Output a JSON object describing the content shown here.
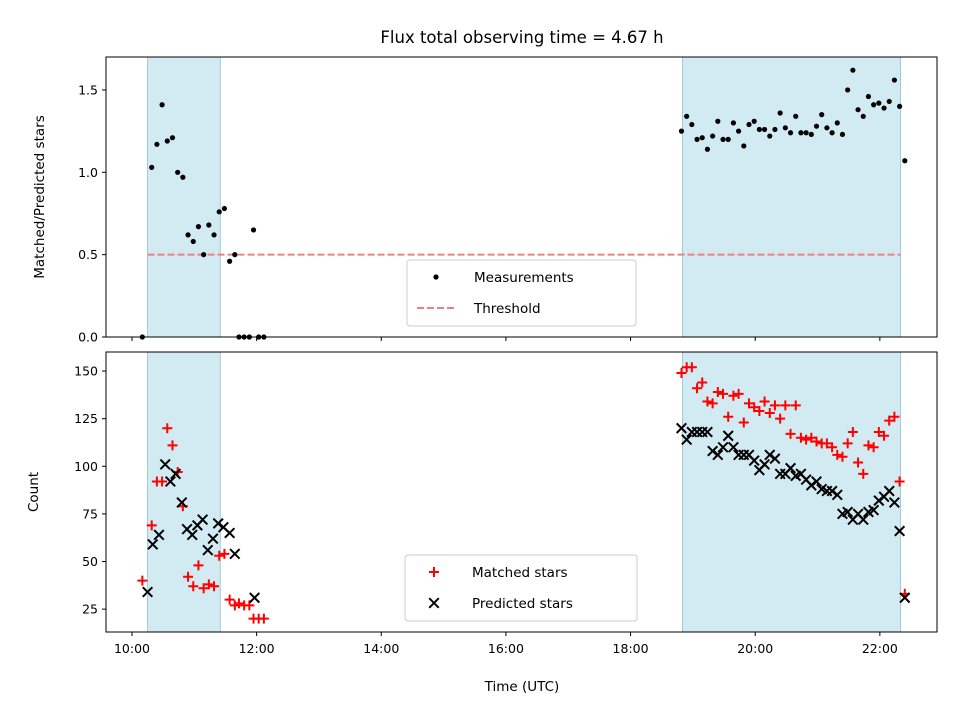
{
  "chart_data": {
    "title": "Flux total observing time = 4.67 h",
    "shaded_intervals": [
      [
        "10:15",
        "11:25"
      ],
      [
        "18:50",
        "22:20"
      ]
    ],
    "shade_color": "#add8e6",
    "xlim": [
      "09:35",
      "22:55"
    ],
    "x_ticks": [
      "10:00",
      "12:00",
      "14:00",
      "16:00",
      "18:00",
      "20:00",
      "22:00"
    ],
    "xlabel": "Time (UTC)",
    "panels": [
      {
        "type": "scatter",
        "ylabel": "Matched/Predicted stars",
        "ylim": [
          0,
          1.7
        ],
        "y_ticks": [
          "0.0",
          "0.5",
          "1.0",
          "1.5"
        ],
        "legend": {
          "position": "lower center",
          "entries": [
            "Measurements",
            "Threshold"
          ]
        },
        "series": [
          {
            "name": "Measurements",
            "marker": "dot",
            "color": "#000000",
            "points": [
              [
                "10:10",
                0.0
              ],
              [
                "10:19",
                1.03
              ],
              [
                "10:24",
                1.17
              ],
              [
                "10:29",
                1.41
              ],
              [
                "10:34",
                1.19
              ],
              [
                "10:39",
                1.21
              ],
              [
                "10:44",
                1.0
              ],
              [
                "10:49",
                0.97
              ],
              [
                "10:54",
                0.62
              ],
              [
                "10:59",
                0.58
              ],
              [
                "11:04",
                0.67
              ],
              [
                "11:09",
                0.5
              ],
              [
                "11:14",
                0.68
              ],
              [
                "11:19",
                0.62
              ],
              [
                "11:24",
                0.76
              ],
              [
                "11:29",
                0.78
              ],
              [
                "11:34",
                0.46
              ],
              [
                "11:39",
                0.5
              ],
              [
                "11:43",
                0.0
              ],
              [
                "11:48",
                0.0
              ],
              [
                "11:53",
                0.0
              ],
              [
                "11:57",
                0.65
              ],
              [
                "12:02",
                0.0
              ],
              [
                "12:07",
                0.0
              ],
              [
                "18:49",
                1.25
              ],
              [
                "18:54",
                1.34
              ],
              [
                "18:59",
                1.29
              ],
              [
                "19:04",
                1.2
              ],
              [
                "19:09",
                1.21
              ],
              [
                "19:14",
                1.14
              ],
              [
                "19:19",
                1.22
              ],
              [
                "19:24",
                1.31
              ],
              [
                "19:29",
                1.2
              ],
              [
                "19:34",
                1.2
              ],
              [
                "19:39",
                1.3
              ],
              [
                "19:44",
                1.25
              ],
              [
                "19:49",
                1.16
              ],
              [
                "19:54",
                1.29
              ],
              [
                "19:59",
                1.31
              ],
              [
                "20:04",
                1.26
              ],
              [
                "20:09",
                1.26
              ],
              [
                "20:14",
                1.22
              ],
              [
                "20:19",
                1.26
              ],
              [
                "20:24",
                1.36
              ],
              [
                "20:29",
                1.27
              ],
              [
                "20:34",
                1.24
              ],
              [
                "20:39",
                1.34
              ],
              [
                "20:44",
                1.24
              ],
              [
                "20:49",
                1.24
              ],
              [
                "20:54",
                1.23
              ],
              [
                "20:59",
                1.28
              ],
              [
                "21:04",
                1.35
              ],
              [
                "21:09",
                1.27
              ],
              [
                "21:14",
                1.24
              ],
              [
                "21:19",
                1.3
              ],
              [
                "21:24",
                1.23
              ],
              [
                "21:29",
                1.5
              ],
              [
                "21:34",
                1.62
              ],
              [
                "21:39",
                1.38
              ],
              [
                "21:44",
                1.34
              ],
              [
                "21:49",
                1.46
              ],
              [
                "21:54",
                1.41
              ],
              [
                "21:59",
                1.42
              ],
              [
                "22:04",
                1.39
              ],
              [
                "22:09",
                1.43
              ],
              [
                "22:14",
                1.56
              ],
              [
                "22:19",
                1.4
              ],
              [
                "22:24",
                1.07
              ]
            ]
          },
          {
            "name": "Threshold",
            "type": "line",
            "style": "dashed",
            "color": "#f08080",
            "x": [
              "10:15",
              "22:20"
            ],
            "y": [
              0.5,
              0.5
            ]
          }
        ]
      },
      {
        "type": "scatter",
        "ylabel": "Count",
        "ylim": [
          13,
          160
        ],
        "y_ticks": [
          "25",
          "50",
          "75",
          "100",
          "125",
          "150"
        ],
        "legend": {
          "position": "lower center",
          "entries": [
            "Matched stars",
            "Predicted stars"
          ]
        },
        "series": [
          {
            "name": "Matched stars",
            "marker": "plus",
            "color": "#ff0000",
            "points": [
              [
                "10:10",
                40
              ],
              [
                "10:19",
                69
              ],
              [
                "10:24",
                92
              ],
              [
                "10:29",
                92
              ],
              [
                "10:34",
                120
              ],
              [
                "10:39",
                111
              ],
              [
                "10:44",
                97
              ],
              [
                "10:49",
                79
              ],
              [
                "10:54",
                42
              ],
              [
                "10:59",
                37
              ],
              [
                "11:04",
                48
              ],
              [
                "11:09",
                36
              ],
              [
                "11:14",
                38
              ],
              [
                "11:19",
                37
              ],
              [
                "11:24",
                53
              ],
              [
                "11:29",
                54
              ],
              [
                "11:34",
                30
              ],
              [
                "11:39",
                27
              ],
              [
                "11:43",
                28
              ],
              [
                "11:48",
                27
              ],
              [
                "11:53",
                27
              ],
              [
                "11:57",
                20
              ],
              [
                "12:02",
                20
              ],
              [
                "12:07",
                20
              ],
              [
                "18:49",
                149
              ],
              [
                "18:54",
                152
              ],
              [
                "18:59",
                152
              ],
              [
                "19:04",
                141
              ],
              [
                "19:09",
                144
              ],
              [
                "19:14",
                134
              ],
              [
                "19:19",
                133
              ],
              [
                "19:24",
                139
              ],
              [
                "19:29",
                138
              ],
              [
                "19:34",
                126
              ],
              [
                "19:39",
                137
              ],
              [
                "19:44",
                138
              ],
              [
                "19:49",
                123
              ],
              [
                "19:54",
                133
              ],
              [
                "19:59",
                131
              ],
              [
                "20:04",
                129
              ],
              [
                "20:09",
                134
              ],
              [
                "20:14",
                128
              ],
              [
                "20:19",
                132
              ],
              [
                "20:24",
                125
              ],
              [
                "20:29",
                132
              ],
              [
                "20:34",
                117
              ],
              [
                "20:39",
                132
              ],
              [
                "20:44",
                115
              ],
              [
                "20:49",
                114
              ],
              [
                "20:54",
                115
              ],
              [
                "20:59",
                113
              ],
              [
                "21:04",
                112
              ],
              [
                "21:09",
                112
              ],
              [
                "21:14",
                110
              ],
              [
                "21:19",
                106
              ],
              [
                "21:24",
                105
              ],
              [
                "21:29",
                112
              ],
              [
                "21:34",
                118
              ],
              [
                "21:39",
                102
              ],
              [
                "21:44",
                96
              ],
              [
                "21:49",
                111
              ],
              [
                "21:54",
                110
              ],
              [
                "21:59",
                118
              ],
              [
                "22:04",
                116
              ],
              [
                "22:09",
                124
              ],
              [
                "22:14",
                126
              ],
              [
                "22:19",
                92
              ],
              [
                "22:24",
                33
              ]
            ]
          },
          {
            "name": "Predicted stars",
            "marker": "x",
            "color": "#000000",
            "points": [
              [
                "10:15",
                34
              ],
              [
                "10:20",
                59
              ],
              [
                "10:26",
                64
              ],
              [
                "10:32",
                101
              ],
              [
                "10:37",
                92
              ],
              [
                "10:42",
                96
              ],
              [
                "10:48",
                81
              ],
              [
                "10:53",
                67
              ],
              [
                "10:58",
                64
              ],
              [
                "11:03",
                69
              ],
              [
                "11:08",
                72
              ],
              [
                "11:13",
                56
              ],
              [
                "11:18",
                62
              ],
              [
                "11:23",
                70
              ],
              [
                "11:28",
                68
              ],
              [
                "11:34",
                65
              ],
              [
                "11:39",
                54
              ],
              [
                "11:58",
                31
              ],
              [
                "18:49",
                120
              ],
              [
                "18:54",
                114
              ],
              [
                "18:59",
                118
              ],
              [
                "19:04",
                118
              ],
              [
                "19:09",
                118
              ],
              [
                "19:14",
                118
              ],
              [
                "19:19",
                108
              ],
              [
                "19:24",
                106
              ],
              [
                "19:29",
                110
              ],
              [
                "19:34",
                116
              ],
              [
                "19:39",
                110
              ],
              [
                "19:44",
                106
              ],
              [
                "19:49",
                106
              ],
              [
                "19:54",
                106
              ],
              [
                "19:59",
                103
              ],
              [
                "20:04",
                98
              ],
              [
                "20:09",
                101
              ],
              [
                "20:14",
                106
              ],
              [
                "20:19",
                104
              ],
              [
                "20:24",
                96
              ],
              [
                "20:29",
                96
              ],
              [
                "20:34",
                99
              ],
              [
                "20:39",
                95
              ],
              [
                "20:44",
                96
              ],
              [
                "20:49",
                93
              ],
              [
                "20:54",
                90
              ],
              [
                "20:59",
                92
              ],
              [
                "21:04",
                88
              ],
              [
                "21:09",
                87
              ],
              [
                "21:14",
                87
              ],
              [
                "21:19",
                85
              ],
              [
                "21:24",
                75
              ],
              [
                "21:29",
                76
              ],
              [
                "21:34",
                72
              ],
              [
                "21:39",
                75
              ],
              [
                "21:44",
                72
              ],
              [
                "21:49",
                76
              ],
              [
                "21:54",
                77
              ],
              [
                "21:59",
                82
              ],
              [
                "22:04",
                84
              ],
              [
                "22:09",
                87
              ],
              [
                "22:14",
                81
              ],
              [
                "22:19",
                66
              ],
              [
                "22:24",
                31
              ]
            ]
          }
        ]
      }
    ]
  }
}
